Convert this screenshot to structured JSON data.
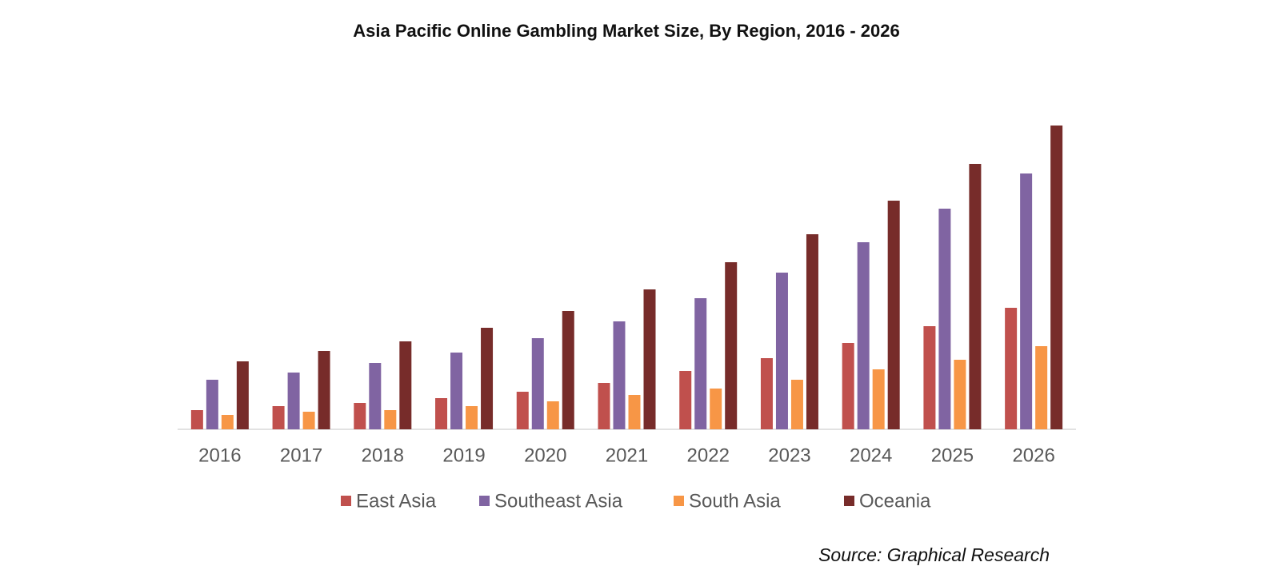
{
  "chart_data": {
    "type": "bar",
    "title": "Asia Pacific Online Gambling Market Size, By Region, 2016 - 2026",
    "source": "Source: Graphical Research",
    "categories": [
      "2016",
      "2017",
      "2018",
      "2019",
      "2020",
      "2021",
      "2022",
      "2023",
      "2024",
      "2025",
      "2026"
    ],
    "series": [
      {
        "name": "East Asia",
        "color": "#c0504d",
        "values": [
          24,
          29,
          33,
          39,
          47,
          58,
          73,
          89,
          108,
          129,
          152
        ]
      },
      {
        "name": "Southeast Asia",
        "color": "#8064a2",
        "values": [
          62,
          71,
          83,
          96,
          114,
          135,
          164,
          196,
          234,
          276,
          320
        ]
      },
      {
        "name": "South Asia",
        "color": "#f79646",
        "values": [
          18,
          22,
          24,
          29,
          35,
          43,
          51,
          62,
          75,
          87,
          104
        ]
      },
      {
        "name": "Oceania",
        "color": "#772c2a",
        "values": [
          85,
          98,
          110,
          127,
          148,
          175,
          209,
          244,
          286,
          332,
          380
        ]
      }
    ],
    "ylim": [
      0,
      400
    ],
    "grid": false,
    "legend": "bottom"
  }
}
